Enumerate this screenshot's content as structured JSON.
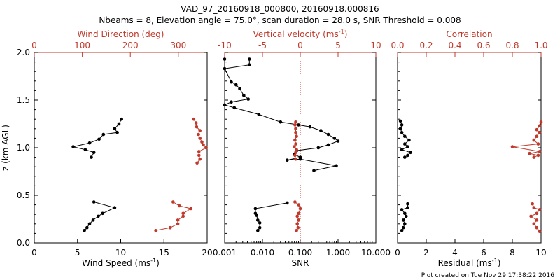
{
  "title_line1": "VAD_97_20160918_000800, 20160918.000816",
  "title_line2": "Nbeams = 8, Elevation angle = 75.0°, scan duration = 28.0 s, SNR Threshold = 0.008",
  "footer": "Plot created on Tue Nov 29 17:38:22 2016",
  "colors": {
    "axis": "#000000",
    "accent": "#c0392b",
    "series_black": "#000000"
  },
  "chart_data": [
    {
      "id": "wind",
      "type": "line",
      "ylabel": "z (km AGL)",
      "ylim": [
        0,
        2
      ],
      "yticks": [
        "0.0",
        "0.5",
        "1.0",
        "1.5",
        "2.0"
      ],
      "xlabel_bottom": "Wind Speed (ms",
      "xlabel_bottom_sup": "-1",
      "xlabel_bottom_tail": ")",
      "xlim_bottom": [
        0,
        20
      ],
      "xticks_bottom": [
        "0",
        "5",
        "10",
        "15",
        "20"
      ],
      "xlabel_top": "Wind Direction (deg)",
      "xlim_top": [
        0,
        360
      ],
      "xticks_top": [
        "0",
        "100",
        "200",
        "300"
      ],
      "series": [
        {
          "name": "Wind Speed",
          "axis": "bottom",
          "color": "#000000",
          "segments": [
            [
              [
                6.6,
                0.9
              ],
              [
                6.9,
                0.95
              ],
              [
                5.9,
                0.98
              ],
              [
                4.5,
                1.01
              ],
              [
                6.4,
                1.05
              ],
              [
                7.5,
                1.09
              ],
              [
                8.0,
                1.14
              ],
              [
                9.6,
                1.16
              ],
              [
                9.3,
                1.2
              ],
              [
                9.8,
                1.25
              ],
              [
                10.1,
                1.3
              ]
            ],
            [
              [
                5.8,
                0.13
              ],
              [
                6.1,
                0.16
              ],
              [
                6.4,
                0.2
              ],
              [
                6.8,
                0.24
              ],
              [
                7.4,
                0.28
              ],
              [
                7.9,
                0.31
              ],
              [
                9.3,
                0.37
              ],
              [
                6.9,
                0.43
              ]
            ]
          ]
        },
        {
          "name": "Wind Direction",
          "axis": "top",
          "color": "#c0392b",
          "segments": [
            [
              [
                339,
                0.84
              ],
              [
                345,
                0.88
              ],
              [
                343,
                0.92
              ],
              [
                343,
                0.96
              ],
              [
                358,
                1.0
              ],
              [
                352,
                1.03
              ],
              [
                349,
                1.06
              ],
              [
                345,
                1.1
              ],
              [
                342,
                1.14
              ],
              [
                345,
                1.18
              ],
              [
                338,
                1.22
              ],
              [
                337,
                1.26
              ],
              [
                332,
                1.3
              ]
            ],
            [
              [
                253,
                0.13
              ],
              [
                283,
                0.16
              ],
              [
                299,
                0.2
              ],
              [
                299,
                0.24
              ],
              [
                310,
                0.28
              ],
              [
                310,
                0.31
              ],
              [
                326,
                0.36
              ],
              [
                302,
                0.39
              ],
              [
                289,
                0.43
              ]
            ]
          ]
        }
      ]
    },
    {
      "id": "snr",
      "type": "line",
      "ylim": [
        0,
        2
      ],
      "xlabel_bottom": "SNR",
      "xscale_bottom": "log",
      "xlim_bottom": [
        0.001,
        10
      ],
      "xticks_bottom": [
        "0.001",
        "0.010",
        "0.100",
        "1.000",
        "10.000"
      ],
      "xlabel_top": "Vertical velocity (ms",
      "xlabel_top_sup": "-1",
      "xlabel_top_tail": ")",
      "xlim_top": [
        -10,
        10
      ],
      "xticks_top": [
        "-10",
        "-5",
        "0",
        "5",
        "10"
      ],
      "series": [
        {
          "name": "SNR",
          "axis": "bottom",
          "color": "#000000",
          "segments": [
            [
              [
                0.001,
                1.93
              ],
              [
                0.0045,
                1.93
              ],
              [
                0.0045,
                1.87
              ],
              [
                0.001,
                1.83
              ],
              [
                0.0015,
                1.69
              ],
              [
                0.002,
                1.66
              ],
              [
                0.0025,
                1.62
              ],
              [
                0.0032,
                1.55
              ],
              [
                0.0042,
                1.51
              ],
              [
                0.0015,
                1.48
              ],
              [
                0.001,
                1.45
              ],
              [
                0.0018,
                1.42
              ],
              [
                0.008,
                1.35
              ],
              [
                0.03,
                1.27
              ],
              [
                0.09,
                1.24
              ],
              [
                0.18,
                1.22
              ],
              [
                0.35,
                1.18
              ],
              [
                0.55,
                1.14
              ],
              [
                0.8,
                1.1
              ],
              [
                1.0,
                1.07
              ],
              [
                0.55,
                1.03
              ],
              [
                0.3,
                1.0
              ],
              [
                0.08,
                0.97
              ],
              [
                0.07,
                0.93
              ],
              [
                0.1,
                0.9
              ],
              [
                0.045,
                0.87
              ],
              [
                0.1,
                0.88
              ],
              [
                0.9,
                0.81
              ],
              [
                0.23,
                0.76
              ]
            ],
            [
              [
                0.0075,
                0.13
              ],
              [
                0.0085,
                0.16
              ],
              [
                0.0085,
                0.21
              ],
              [
                0.0075,
                0.24
              ],
              [
                0.007,
                0.29
              ],
              [
                0.0065,
                0.31
              ],
              [
                0.0065,
                0.36
              ],
              [
                0.045,
                0.42
              ]
            ]
          ]
        },
        {
          "name": "Vertical velocity",
          "axis": "top",
          "color": "#c0392b",
          "segments": [
            [
              [
                -0.6,
                0.88
              ],
              [
                -0.7,
                0.92
              ],
              [
                -0.6,
                0.95
              ],
              [
                -0.5,
                0.98
              ],
              [
                -0.8,
                1.01
              ],
              [
                -0.6,
                1.04
              ],
              [
                -0.7,
                1.08
              ],
              [
                -0.5,
                1.12
              ],
              [
                -0.6,
                1.16
              ],
              [
                -0.6,
                1.2
              ],
              [
                -0.7,
                1.24
              ],
              [
                -0.6,
                1.27
              ]
            ],
            [
              [
                -0.5,
                0.13
              ],
              [
                -0.3,
                0.16
              ],
              [
                -0.4,
                0.2
              ],
              [
                -0.2,
                0.24
              ],
              [
                -0.4,
                0.28
              ],
              [
                -0.2,
                0.31
              ],
              [
                0.0,
                0.36
              ],
              [
                -0.2,
                0.4
              ],
              [
                -0.7,
                0.43
              ]
            ]
          ]
        }
      ],
      "reference_line": {
        "axis": "top",
        "x": 0,
        "color": "#c0392b",
        "style": "dotted"
      }
    },
    {
      "id": "residual",
      "type": "line",
      "ylim": [
        0,
        2
      ],
      "xlabel_bottom": "Residual (ms",
      "xlabel_bottom_sup": "-1",
      "xlabel_bottom_tail": ")",
      "xlim_bottom": [
        0,
        10
      ],
      "xticks_bottom": [
        "0",
        "2",
        "4",
        "6",
        "8",
        "10"
      ],
      "xlabel_top": "Correlation",
      "xlim_top": [
        0,
        1
      ],
      "xticks_top": [
        "0.0",
        "0.2",
        "0.4",
        "0.6",
        "0.8",
        "1.0"
      ],
      "series": [
        {
          "name": "Residual",
          "axis": "bottom",
          "color": "#000000",
          "segments": [
            [
              [
                0.5,
                0.9
              ],
              [
                0.7,
                0.92
              ],
              [
                0.9,
                0.95
              ],
              [
                0.3,
                0.98
              ],
              [
                0.7,
                1.01
              ],
              [
                0.5,
                1.04
              ],
              [
                0.8,
                1.08
              ],
              [
                0.5,
                1.12
              ],
              [
                0.3,
                1.16
              ],
              [
                0.2,
                1.2
              ],
              [
                0.3,
                1.24
              ],
              [
                0.2,
                1.28
              ]
            ],
            [
              [
                0.3,
                0.13
              ],
              [
                0.4,
                0.16
              ],
              [
                0.5,
                0.2
              ],
              [
                0.4,
                0.24
              ],
              [
                0.6,
                0.28
              ],
              [
                0.5,
                0.31
              ],
              [
                0.3,
                0.35
              ],
              [
                0.7,
                0.37
              ],
              [
                0.7,
                0.41
              ]
            ]
          ]
        },
        {
          "name": "Correlation",
          "axis": "top",
          "color": "#c0392b",
          "segments": [
            [
              [
                0.95,
                0.9
              ],
              [
                0.98,
                0.92
              ],
              [
                0.92,
                0.94
              ],
              [
                0.99,
                0.96
              ],
              [
                0.8,
                1.01
              ],
              [
                0.98,
                1.04
              ],
              [
                0.95,
                1.08
              ],
              [
                0.97,
                1.12
              ],
              [
                0.99,
                1.16
              ],
              [
                0.97,
                1.19
              ],
              [
                0.99,
                1.23
              ],
              [
                1.0,
                1.27
              ]
            ],
            [
              [
                0.99,
                0.12
              ],
              [
                0.97,
                0.16
              ],
              [
                0.95,
                0.2
              ],
              [
                0.97,
                0.24
              ],
              [
                0.93,
                0.28
              ],
              [
                0.97,
                0.31
              ],
              [
                0.99,
                0.35
              ],
              [
                0.95,
                0.37
              ],
              [
                0.94,
                0.41
              ]
            ]
          ]
        }
      ]
    }
  ]
}
